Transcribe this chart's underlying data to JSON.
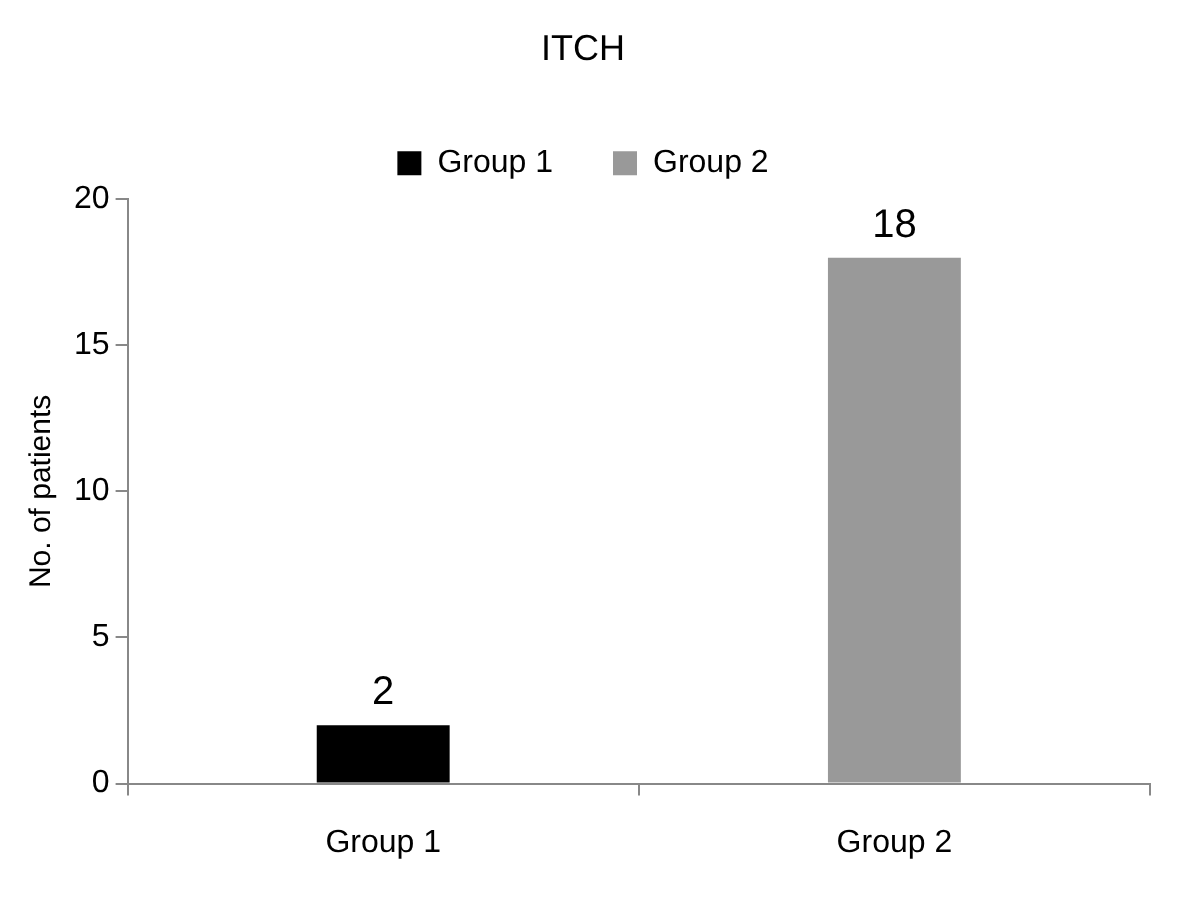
{
  "chart_data": {
    "type": "bar",
    "title": "ITCH",
    "categories": [
      "Group 1",
      "Group 2"
    ],
    "series": [
      {
        "name": "Group 1",
        "color": "#000000",
        "values": [
          2,
          null
        ]
      },
      {
        "name": "Group 2",
        "color": "#999999",
        "values": [
          null,
          18
        ]
      }
    ],
    "ylabel": "No. of patients",
    "ylim": [
      0,
      20
    ],
    "yticks": [
      0,
      5,
      10,
      15,
      20
    ],
    "grid": false,
    "legend": "top",
    "data_labels": true
  }
}
